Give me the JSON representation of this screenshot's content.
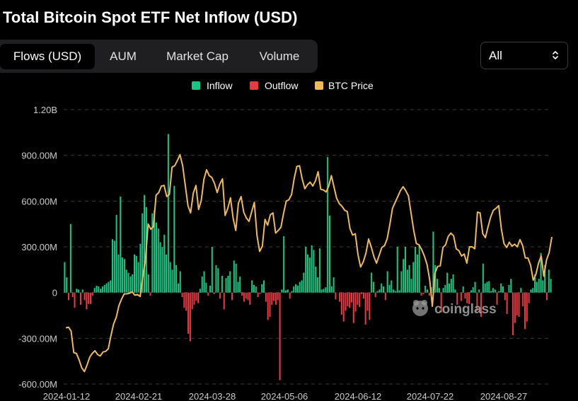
{
  "header": {
    "title": "Total Bitcoin Spot ETF Net Inflow (USD)"
  },
  "tabs": [
    {
      "label": "Flows (USD)",
      "active": true
    },
    {
      "label": "AUM",
      "active": false
    },
    {
      "label": "Market Cap",
      "active": false
    },
    {
      "label": "Volume",
      "active": false
    }
  ],
  "range_select": {
    "value": "All",
    "icon": "chevron-up-down-icon"
  },
  "watermark": {
    "text": "coinglass",
    "icon": "coinglass-logo-icon"
  },
  "colors": {
    "inflow": "#16c784",
    "outflow": "#ea3943",
    "price": "#f0b95a",
    "grid": "#3a3a3a",
    "axis_text": "#cccccc"
  },
  "chart_data": {
    "type": "bar",
    "title": "Total Bitcoin Spot ETF Net Inflow (USD)",
    "legend": [
      "Inflow",
      "Outflow",
      "BTC Price"
    ],
    "legend_position": "top-center",
    "y_ticks": [
      "1.20B",
      "900.00M",
      "600.00M",
      "300.00M",
      "0",
      "-300.00M",
      "-600.00M"
    ],
    "ylim": [
      -600,
      1200
    ],
    "x_ticks": [
      "2024-01-12",
      "2024-02-21",
      "2024-03-28",
      "2024-05-06",
      "2024-06-12",
      "2024-07-22",
      "2024-08-27"
    ],
    "grid": true,
    "units": "USD millions",
    "series": [
      {
        "name": "Net Inflow",
        "type": "bar",
        "values": [
          200,
          100,
          -50,
          450,
          -30,
          -100,
          25,
          20,
          -80,
          20,
          -50,
          -110,
          -75,
          -75,
          -20,
          30,
          45,
          40,
          25,
          40,
          50,
          60,
          70,
          80,
          350,
          340,
          510,
          250,
          630,
          230,
          220,
          150,
          130,
          105,
          120,
          250,
          240,
          200,
          320,
          520,
          640,
          560,
          120,
          -20,
          520,
          540,
          460,
          420,
          330,
          300,
          380,
          250,
          1040,
          200,
          150,
          700,
          180,
          60,
          140,
          -30,
          -100,
          -120,
          -270,
          -320,
          -110,
          -80,
          -55,
          -70,
          25,
          105,
          140,
          65,
          -20,
          45,
          300,
          -10,
          180,
          160,
          -40,
          110,
          -110,
          95,
          110,
          140,
          -50,
          210,
          190,
          70,
          105,
          -20,
          -60,
          -40,
          -50,
          -80,
          80,
          50,
          40,
          -30,
          -10,
          55,
          80,
          -60,
          -180,
          -160,
          -80,
          -55,
          -80,
          -50,
          -575,
          20,
          370,
          15,
          20,
          -40,
          10,
          40,
          55,
          45,
          70,
          80,
          130,
          300,
          250,
          230,
          310,
          280,
          170,
          100,
          290,
          20,
          25,
          35,
          890,
          505,
          40,
          100,
          -45,
          0,
          -60,
          -145,
          -190,
          -120,
          -90,
          -100,
          -65,
          -200,
          -125,
          -80,
          -95,
          -10,
          -40,
          -210,
          -120,
          -180,
          130,
          70,
          -30,
          10,
          20,
          60,
          40,
          -50,
          140,
          50,
          80,
          20,
          10,
          300,
          15,
          140,
          220,
          300,
          150,
          180,
          90,
          200,
          300,
          250,
          310,
          -20,
          -10,
          45,
          20,
          -20,
          35,
          400,
          180,
          90,
          30,
          -130,
          30,
          50,
          130,
          60,
          90,
          120,
          20,
          -80,
          0,
          -55,
          40,
          -40,
          -70,
          -75,
          15,
          35,
          70,
          -120,
          20,
          -160,
          190,
          60,
          70,
          75,
          10,
          30,
          20,
          -80,
          10,
          60,
          40,
          -50,
          -140,
          50,
          90,
          -280,
          -200,
          -150,
          -160,
          30,
          -90,
          -240,
          -190,
          -70,
          20,
          30,
          120,
          70,
          90,
          260,
          80,
          180,
          -50,
          150,
          90
        ],
        "colors_by_sign": {
          "positive": "Inflow",
          "negative": "Outflow"
        }
      },
      {
        "name": "BTC Price",
        "type": "line",
        "y_axis": "none (scaled to chart)",
        "values": [
          46600,
          46700,
          46100,
          42800,
          42700,
          41700,
          40500,
          39900,
          40900,
          42100,
          42700,
          43100,
          42500,
          42300,
          42900,
          43000,
          43400,
          45400,
          47200,
          48200,
          50000,
          51000,
          51800,
          51800,
          51900,
          52100,
          51600,
          51700,
          51400,
          54500,
          57000,
          62500,
          61700,
          62100,
          66900,
          67300,
          68300,
          68400,
          66700,
          67000,
          71200,
          71400,
          72200,
          73100,
          71400,
          68400,
          65300,
          64200,
          67200,
          68400,
          64700,
          66100,
          69300,
          70800,
          69900,
          69600,
          68700,
          67300,
          68600,
          69400,
          63800,
          64900,
          66500,
          63400,
          61500,
          65700,
          66700,
          64300,
          63400,
          62900,
          64400,
          65800,
          60700,
          58300,
          59100,
          63200,
          62300,
          63900,
          64200,
          61100,
          61500,
          62000,
          64100,
          66000,
          66200,
          67000,
          69500,
          71300,
          71400,
          69400,
          67900,
          68500,
          68900,
          68300,
          69100,
          70500,
          67800,
          67700,
          67400,
          68300,
          69900,
          68100,
          66400,
          65600,
          65200,
          64600,
          64400,
          61800,
          60800,
          61000,
          57800,
          55900,
          56700,
          58000,
          60200,
          59000,
          57500,
          56500,
          57700,
          58900,
          59200,
          60200,
          62400,
          64900,
          65800,
          66700,
          67600,
          68200,
          67600,
          66800,
          64200,
          61500,
          59500,
          59300,
          58600,
          57600,
          56300,
          54000,
          49900,
          55000,
          56000,
          56100,
          58900,
          59300,
          60600,
          61100,
          60700,
          58700,
          58400,
          57600,
          57900,
          56500,
          59000,
          59000,
          58700,
          64300,
          64200,
          61000,
          60400,
          62100,
          63600,
          64600,
          64900,
          65300,
          61700,
          59500,
          58900,
          59700,
          59100,
          59400,
          59000,
          60100,
          59200,
          57300,
          57300,
          56200,
          53900,
          54800,
          56500,
          57600,
          54500,
          57000,
          58100,
          60500
        ],
        "label": "BTC Price"
      }
    ]
  }
}
